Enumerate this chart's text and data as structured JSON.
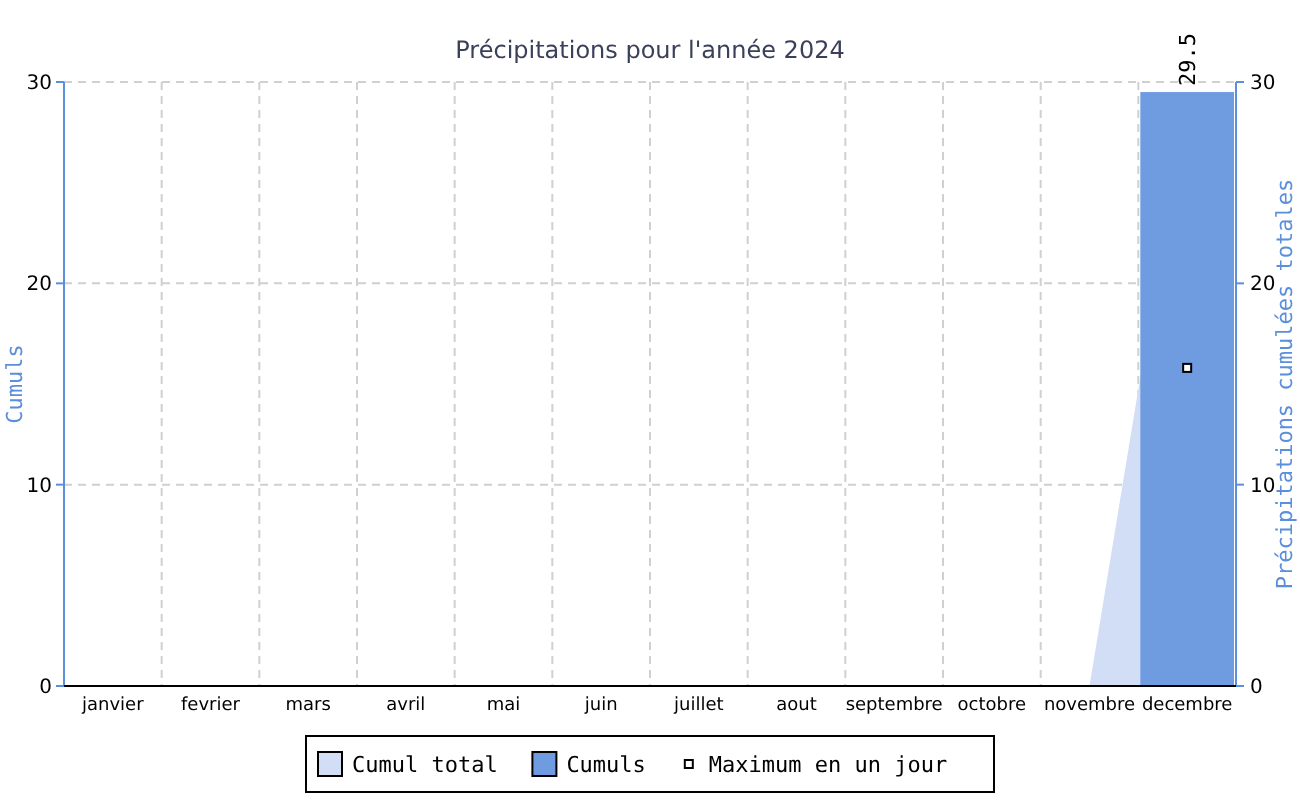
{
  "chart_data": {
    "type": "bar",
    "title": "Précipitations pour l'année 2024",
    "ylabel": "Cumuls",
    "y2label": "Précipitations cumulées totales",
    "categories": [
      "janvier",
      "fevrier",
      "mars",
      "avril",
      "mai",
      "juin",
      "juillet",
      "aout",
      "septembre",
      "octobre",
      "novembre",
      "decembre"
    ],
    "series": [
      {
        "name": "Cumul total",
        "type": "area",
        "axis": "y2",
        "color": "#d2ddf6",
        "values": [
          0,
          0,
          0,
          0,
          0,
          0,
          0,
          0,
          0,
          0,
          0,
          29.5
        ]
      },
      {
        "name": "Cumuls",
        "color": "#6f9be0",
        "values": [
          0,
          0,
          0,
          0,
          0,
          0,
          0,
          0,
          0,
          0,
          0,
          29.5
        ],
        "value_labels": [
          null,
          null,
          null,
          null,
          null,
          null,
          null,
          null,
          null,
          null,
          null,
          "29.5"
        ]
      },
      {
        "name": "Maximum en un jour",
        "type": "scatter",
        "color": "#000000",
        "marker": "square",
        "values": [
          null,
          null,
          null,
          null,
          null,
          null,
          null,
          null,
          null,
          null,
          null,
          15.8
        ]
      }
    ],
    "ylim": [
      0,
      30
    ],
    "yticks": [
      0,
      10,
      20,
      30
    ],
    "y2lim": [
      0,
      30
    ],
    "y2ticks": [
      0,
      10,
      20,
      30
    ],
    "grid": true,
    "legend": "bottom"
  }
}
